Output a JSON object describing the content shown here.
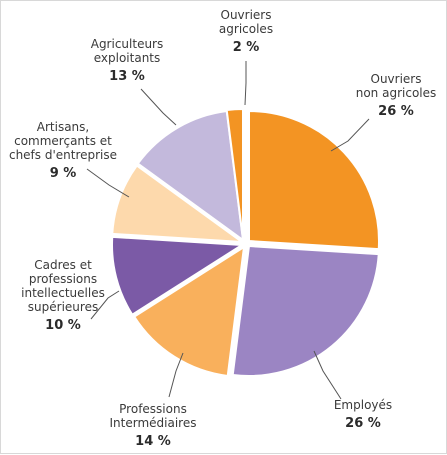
{
  "chart_data": {
    "type": "pie",
    "slices": [
      {
        "label": "Ouvriers non agricoles",
        "lines": [
          "Ouvriers",
          "non agricoles"
        ],
        "percent_label": "26 %",
        "value": 26,
        "color": "#f39423"
      },
      {
        "label": "Employés",
        "lines": [
          "Employés"
        ],
        "percent_label": "26 %",
        "value": 26,
        "color": "#9b85c3"
      },
      {
        "label": "Professions Intermédiaires",
        "lines": [
          "Professions",
          "Intermédiaires"
        ],
        "percent_label": "14 %",
        "value": 14,
        "color": "#f9b05c"
      },
      {
        "label": "Cadres et professions intellectuelles supérieures",
        "lines": [
          "Cadres et",
          "professions",
          "intellectuelles",
          "supérieures"
        ],
        "percent_label": "10 %",
        "value": 10,
        "color": "#7b5aa6"
      },
      {
        "label": "Artisans, commerçants et chefs d'entreprise",
        "lines": [
          "Artisans,",
          "commerçants et",
          "chefs d'entreprise"
        ],
        "percent_label": "9 %",
        "value": 9,
        "color": "#fdd9ac"
      },
      {
        "label": "Agriculteurs exploitants",
        "lines": [
          "Agriculteurs",
          "exploitants"
        ],
        "percent_label": "13 %",
        "value": 13,
        "color": "#c3b9dc"
      },
      {
        "label": "Ouvriers agricoles",
        "lines": [
          "Ouvriers",
          "agricoles"
        ],
        "percent_label": "2 %",
        "value": 2,
        "color": "#f39423"
      }
    ]
  }
}
